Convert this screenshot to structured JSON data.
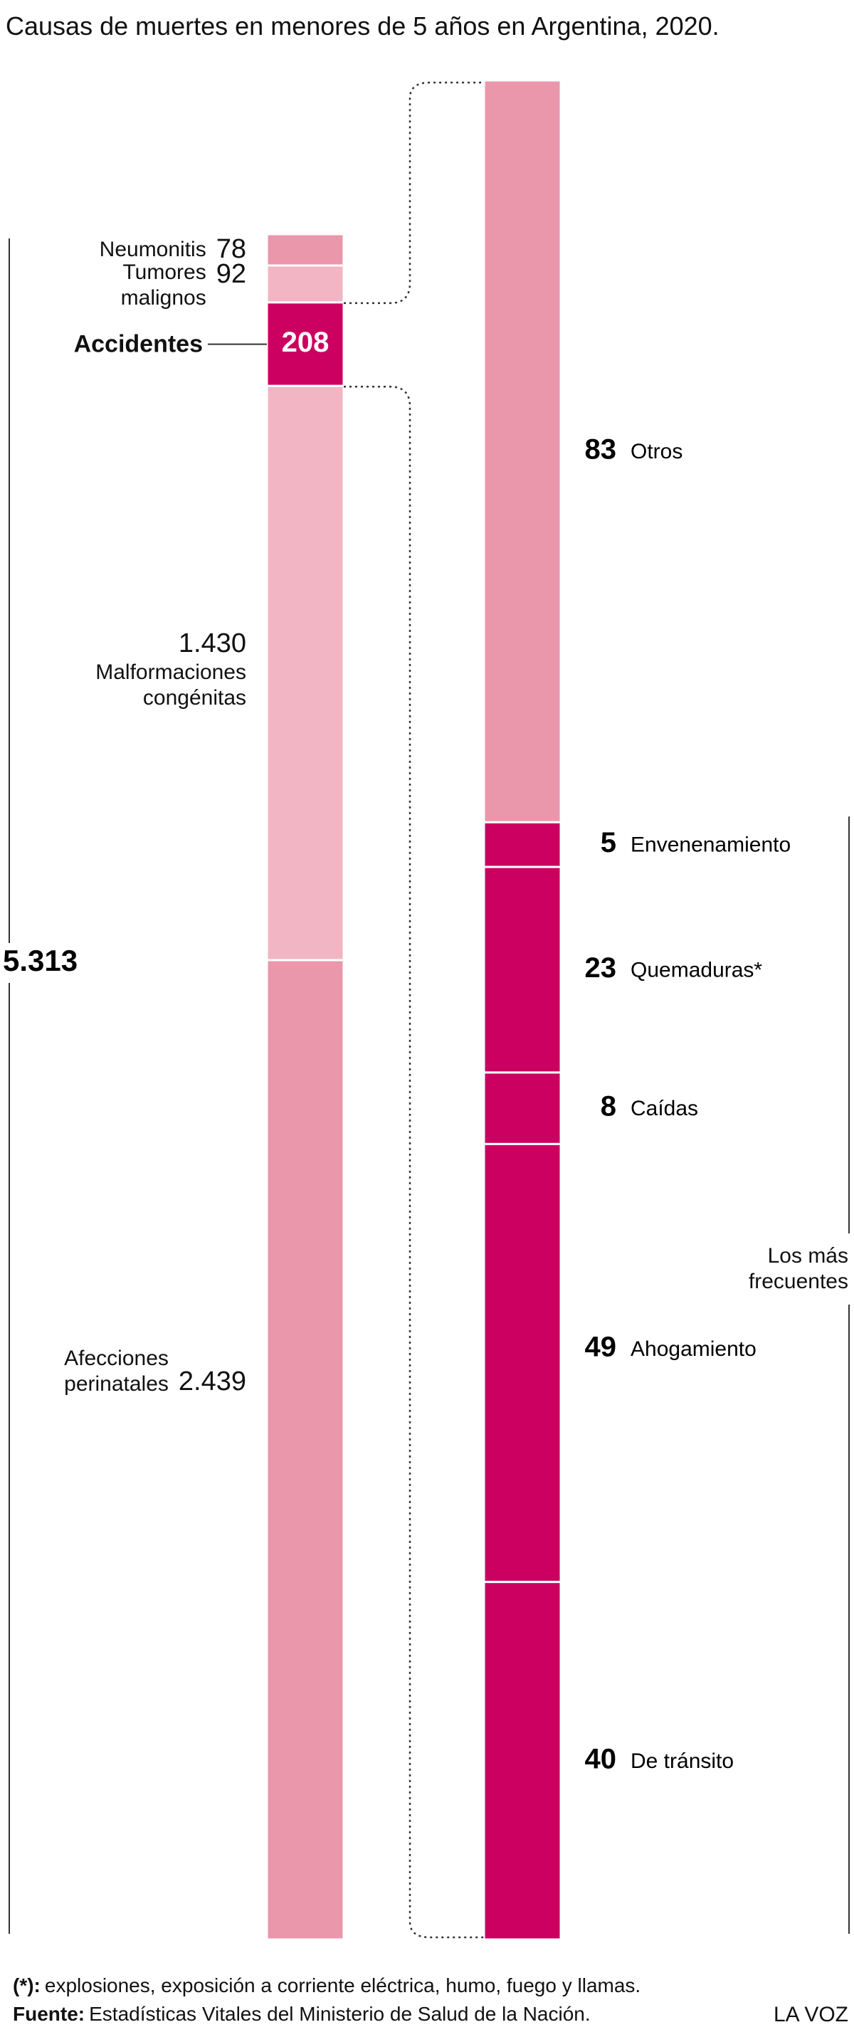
{
  "title": "Causas de muertes en menores de 5 años en Argentina, 2020.",
  "chart_data": [
    {
      "type": "stacked-bar",
      "categories": [
        "Neumonitis",
        "Tumores malignos",
        "Accidentes",
        "Malformaciones congénitas",
        "Afecciones perinatales"
      ],
      "values": [
        78,
        92,
        208,
        1430,
        2439
      ],
      "value_labels": [
        "78",
        "92",
        "208",
        "1.430",
        "2.439"
      ],
      "colors": [
        "#ea97ac",
        "#f2b5c3",
        "#cc0060",
        "#f2b5c3",
        "#ea97ac"
      ],
      "highlight": 2,
      "total": {
        "value": 5313,
        "label": "5.313"
      }
    },
    {
      "type": "stacked-bar",
      "categories": [
        "Otros",
        "Envenenamiento",
        "Quemaduras*",
        "Caídas",
        "Ahogamiento",
        "De tránsito"
      ],
      "values": [
        83,
        5,
        23,
        8,
        49,
        40
      ],
      "colors": [
        "#ea97ac",
        "#cc0060",
        "#cc0060",
        "#cc0060",
        "#cc0060",
        "#cc0060"
      ],
      "annotation": "Los más frecuentes"
    }
  ],
  "footnote": {
    "label": "(*):",
    "text": "explosiones, exposición a corriente eléctrica, humo, fuego y llamas."
  },
  "source": {
    "label": "Fuente:",
    "text": "Estadísticas Vitales del Ministerio de Salud de la Nación."
  },
  "brand": "LA VOZ"
}
